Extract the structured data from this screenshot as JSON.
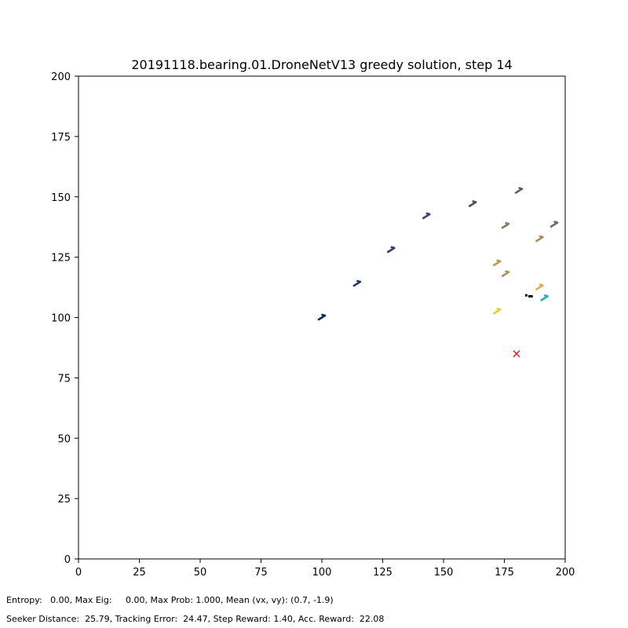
{
  "chart_data": {
    "type": "scatter",
    "title": "20191118.bearing.01.DroneNetV13 greedy solution, step 14",
    "xlabel": "",
    "ylabel": "",
    "xlim": [
      0,
      200
    ],
    "ylim": [
      0,
      200
    ],
    "x_ticks": [
      0,
      25,
      50,
      75,
      100,
      125,
      150,
      175,
      200
    ],
    "y_ticks": [
      0,
      25,
      50,
      75,
      100,
      125,
      150,
      175,
      200
    ],
    "grid": false,
    "drone_path": [
      {
        "x": 100,
        "y": 100,
        "color": "#0f2a5a"
      },
      {
        "x": 114.5,
        "y": 114,
        "color": "#22366a"
      },
      {
        "x": 128.5,
        "y": 128,
        "color": "#2f3d6b"
      },
      {
        "x": 143,
        "y": 142,
        "color": "#3a466c"
      },
      {
        "x": 162,
        "y": 147,
        "color": "#4b5068"
      },
      {
        "x": 181,
        "y": 152.5,
        "color": "#5d5f68"
      },
      {
        "x": 195.5,
        "y": 138.5,
        "color": "#6d6a66"
      },
      {
        "x": 175.5,
        "y": 138,
        "color": "#887a63"
      },
      {
        "x": 189.5,
        "y": 132.5,
        "color": "#a48b5c"
      },
      {
        "x": 172,
        "y": 122.5,
        "color": "#b89a55"
      },
      {
        "x": 175.5,
        "y": 118,
        "color": "#a69563"
      },
      {
        "x": 189.5,
        "y": 112.5,
        "color": "#d4b440"
      },
      {
        "x": 172,
        "y": 102.5,
        "color": "#e6cc37"
      },
      {
        "x": 191.5,
        "y": 108,
        "color": "#17b9b3"
      }
    ],
    "particles": [
      {
        "x": 184,
        "y": 109.2
      },
      {
        "x": 185.3,
        "y": 108.8
      },
      {
        "x": 186.2,
        "y": 108.8
      }
    ],
    "target": {
      "x": 180,
      "y": 85,
      "color": "#e8141b"
    }
  },
  "footer": {
    "line1": "Entropy:   0.00, Max Eig:     0.00, Max Prob: 1.000, Mean (vx, vy): (0.7, -1.9)",
    "line2": "Seeker Distance:  25.79, Tracking Error:  24.47, Step Reward: 1.40, Acc. Reward:  22.08"
  }
}
